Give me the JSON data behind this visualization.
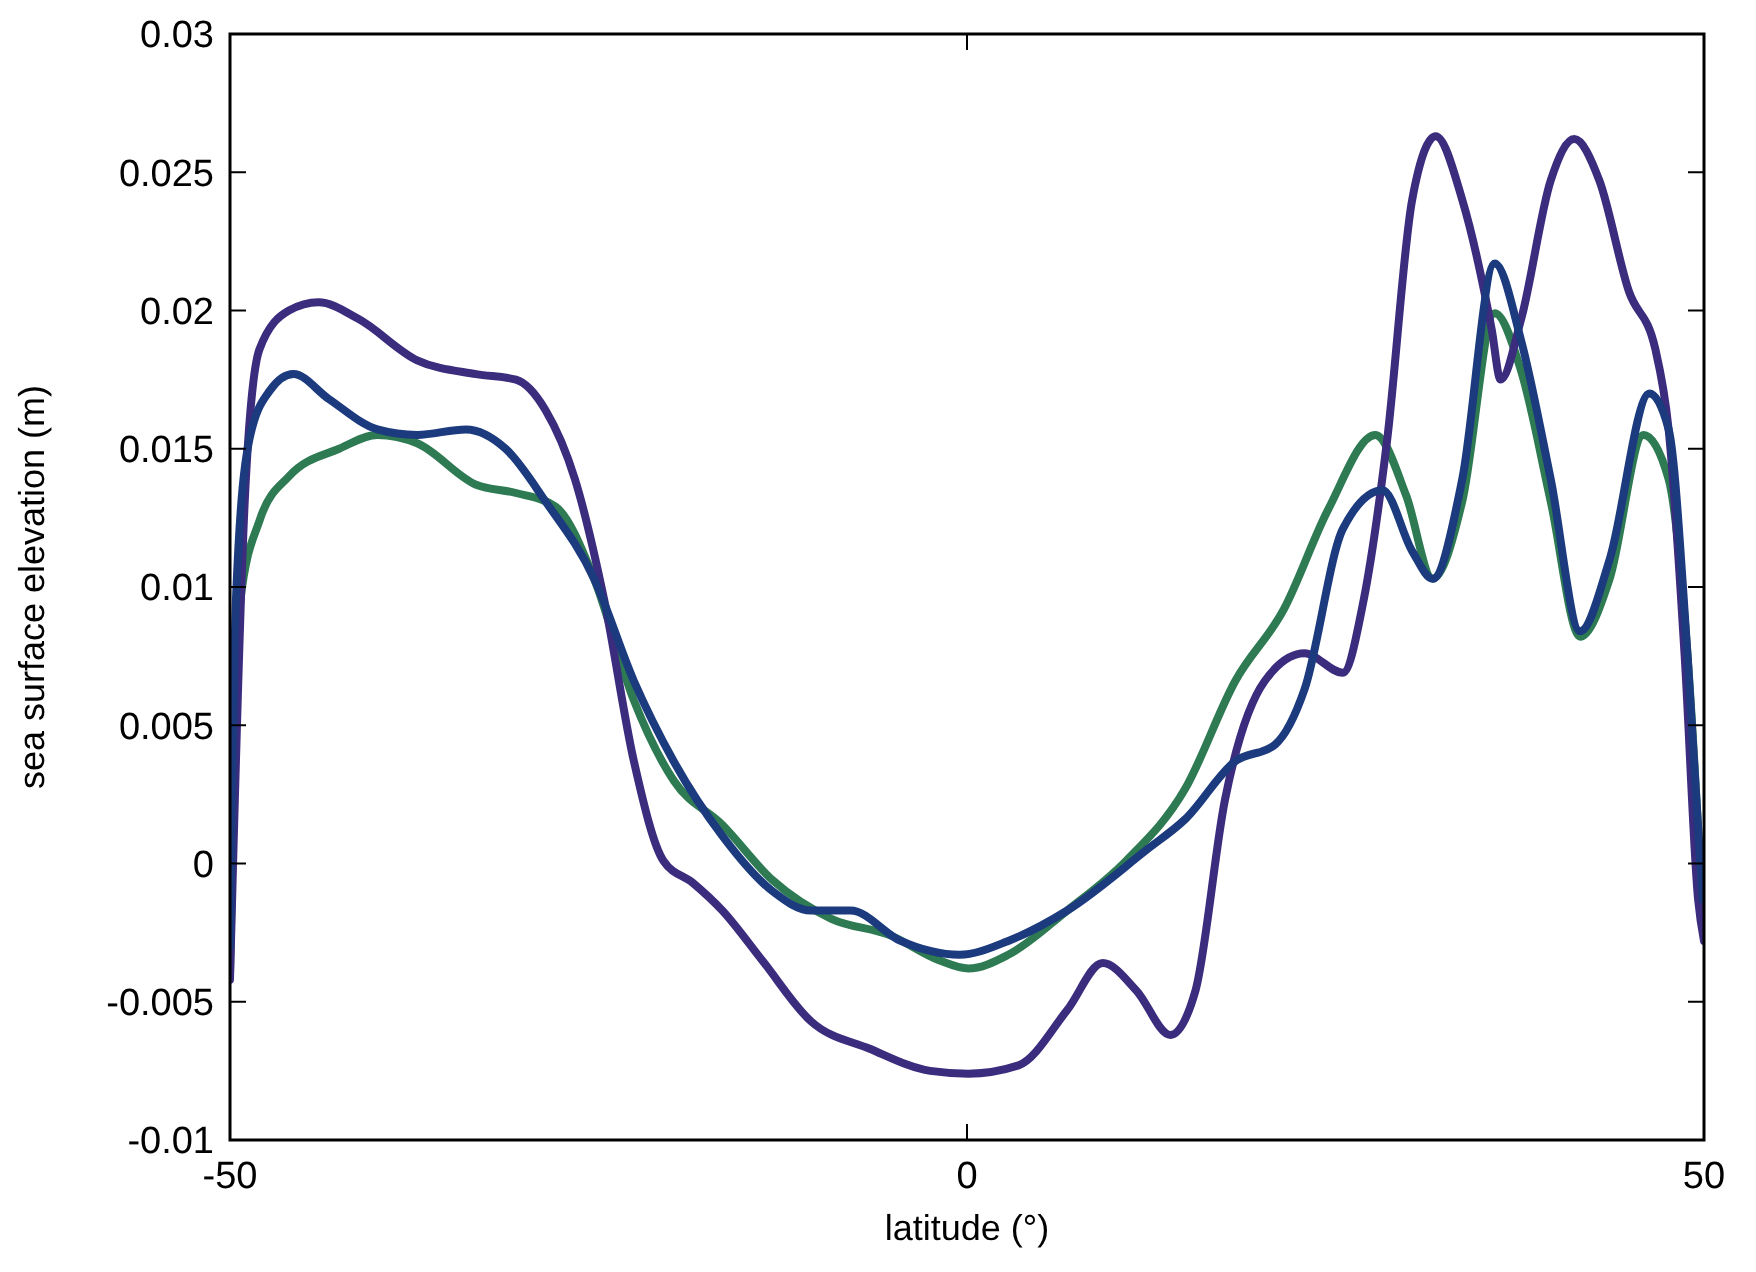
{
  "chart_data": {
    "type": "line",
    "xlabel": "latitude (°)",
    "ylabel": "sea surface elevation (m)",
    "xlim": [
      -50,
      50
    ],
    "xticks": [
      -50,
      0,
      50
    ],
    "ylim": [
      -0.01,
      0.03
    ],
    "yticks": [
      -0.01,
      -0.005,
      0,
      0.005,
      0.01,
      0.015,
      0.02,
      0.025,
      0.03
    ],
    "grid": false,
    "marker": "none",
    "line_style": "solid",
    "series": [
      {
        "color": "#2e7a52",
        "x": [
          -50,
          -49.3,
          -48,
          -46,
          -42.6,
          -40,
          -37.3,
          -33.3,
          -30.6,
          -27.9,
          -25.3,
          -22.6,
          -19.9,
          -16.6,
          -13.2,
          -9.2,
          -5.2,
          -1.9,
          0.1,
          2.8,
          6.8,
          10.8,
          14.8,
          18.2,
          21.5,
          24.5,
          27.7,
          29.8,
          31.6,
          33.6,
          35.8,
          37.6,
          39.6,
          41.6,
          43.6,
          45.9,
          47.6,
          48.9,
          49.9
        ],
        "values": [
          -0.004,
          0.0095,
          0.0124,
          0.014,
          0.015,
          0.0155,
          0.0152,
          0.0137,
          0.0134,
          0.0129,
          0.0103,
          0.0059,
          0.003,
          0.0014,
          -0.0006,
          -0.002,
          -0.0026,
          -0.0035,
          -0.0038,
          -0.0033,
          -0.0017,
          0.0001,
          0.0027,
          0.0066,
          0.0092,
          0.0128,
          0.0155,
          0.0133,
          0.0103,
          0.0131,
          0.0199,
          0.0178,
          0.0131,
          0.0082,
          0.0103,
          0.0155,
          0.0139,
          0.0074,
          -0.0017
        ]
      },
      {
        "color": "#3b2c7e",
        "x": [
          -50,
          -49,
          -48,
          -46,
          -44,
          -41.3,
          -37.3,
          -33.3,
          -30.6,
          -28.6,
          -26.6,
          -24.6,
          -22.6,
          -20.6,
          -18.6,
          -16.6,
          -13.9,
          -10.6,
          -6.6,
          -2.5,
          0.1,
          3.5,
          6.8,
          9.2,
          11.5,
          13.8,
          15.5,
          17.5,
          20.2,
          22.9,
          25.5,
          26.9,
          28.5,
          30.2,
          31.8,
          33.6,
          35.6,
          36.2,
          37.6,
          39.6,
          41.2,
          42.9,
          44.9,
          46.7,
          47.6,
          48.7,
          49.6,
          50
        ],
        "values": [
          -0.0042,
          0.0131,
          0.0186,
          0.02,
          0.0203,
          0.0197,
          0.0182,
          0.0177,
          0.0175,
          0.0164,
          0.0139,
          0.0095,
          0.0037,
          0.0001,
          -0.0007,
          -0.0017,
          -0.0035,
          -0.0057,
          -0.0067,
          -0.0075,
          -0.0076,
          -0.0073,
          -0.0053,
          -0.0036,
          -0.0046,
          -0.0062,
          -0.0046,
          0.0023,
          0.0066,
          0.0076,
          0.0069,
          0.0095,
          0.0153,
          0.024,
          0.0263,
          0.024,
          0.0193,
          0.0175,
          0.0197,
          0.0247,
          0.0262,
          0.0247,
          0.0207,
          0.0186,
          0.0157,
          0.0074,
          -0.0013,
          -0.0028
        ]
      },
      {
        "color": "#1c3a7e",
        "x": [
          -50,
          -49.6,
          -48.7,
          -47.3,
          -45.7,
          -43.3,
          -40,
          -37.3,
          -34,
          -31.3,
          -28.6,
          -25.3,
          -22.6,
          -19.9,
          -16.6,
          -13.2,
          -10.6,
          -7.9,
          -4.5,
          -0.5,
          2.8,
          6.8,
          12.2,
          14.8,
          18.2,
          20.9,
          22.9,
          25.5,
          28.2,
          30.2,
          31.6,
          33.6,
          35.8,
          37.6,
          39.6,
          41.6,
          43.6,
          46.3,
          47.6,
          48.9,
          49.9
        ],
        "values": [
          -0.003,
          0.0095,
          0.0153,
          0.0171,
          0.0177,
          0.0168,
          0.0157,
          0.0155,
          0.0157,
          0.015,
          0.0131,
          0.0103,
          0.0066,
          0.0037,
          0.001,
          -0.001,
          -0.0017,
          -0.0017,
          -0.0028,
          -0.0033,
          -0.0028,
          -0.0017,
          0.0005,
          0.0016,
          0.0037,
          0.0043,
          0.0063,
          0.0121,
          0.0135,
          0.0113,
          0.0103,
          0.0139,
          0.0217,
          0.0189,
          0.0139,
          0.0084,
          0.011,
          0.017,
          0.0157,
          0.0074,
          -0.0013
        ]
      }
    ]
  }
}
